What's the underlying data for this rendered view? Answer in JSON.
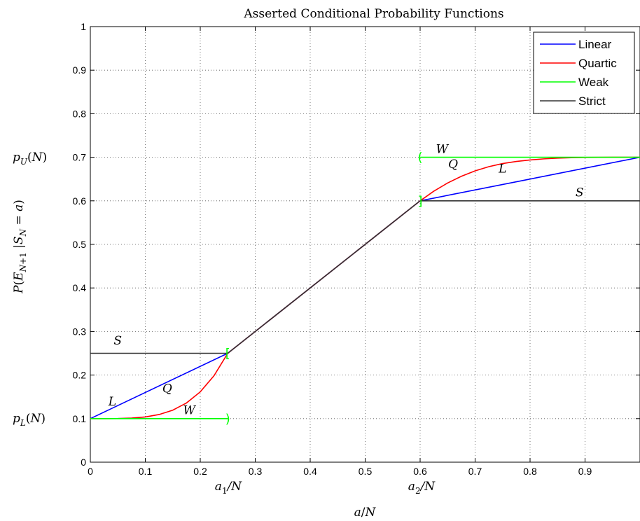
{
  "chart_data": {
    "type": "line",
    "title": "Asserted Conditional Probability Functions",
    "xlabel": "a/N",
    "ylabel": "P(E_{N+1} |S_N = a)",
    "xlim": [
      0,
      1
    ],
    "ylim": [
      0,
      1
    ],
    "x_ticks": [
      "0",
      "0.1",
      "0.2",
      "0.3",
      "0.4",
      "0.5",
      "0.6",
      "0.7",
      "0.8",
      "0.9"
    ],
    "y_ticks": [
      "0",
      "0.1",
      "0.2",
      "0.3",
      "0.4",
      "0.5",
      "0.6",
      "0.7",
      "0.8",
      "0.9",
      "1"
    ],
    "extra_x_labels": [
      {
        "text": "a_1/N",
        "value": 0.25
      },
      {
        "text": "a_2/N",
        "value": 0.6
      }
    ],
    "extra_y_labels": [
      {
        "text": "p_U(N)",
        "value": 0.7
      },
      {
        "text": "p_L(N)",
        "value": 0.1
      }
    ],
    "grid": true,
    "legend_position": "top-right",
    "colors": {
      "linear": "#0000ff",
      "quartic": "#ff0000",
      "weak": "#00ff00",
      "strict": "#333333"
    },
    "series": [
      {
        "name": "Linear",
        "color": "#0000ff",
        "segments": [
          [
            [
              0,
              0.1
            ],
            [
              0.25,
              0.25
            ]
          ],
          [
            [
              0.25,
              0.25
            ],
            [
              0.6,
              0.6
            ]
          ],
          [
            [
              0.6,
              0.6
            ],
            [
              1.0,
              0.7
            ]
          ]
        ]
      },
      {
        "name": "Quartic",
        "color": "#ff0000",
        "segments": [
          [
            [
              0,
              0.1
            ],
            [
              0.025,
              0.10002
            ],
            [
              0.05,
              0.10024
            ],
            [
              0.075,
              0.10122
            ],
            [
              0.1,
              0.10384
            ],
            [
              0.125,
              0.10938
            ],
            [
              0.15,
              0.11944
            ],
            [
              0.175,
              0.13601
            ],
            [
              0.2,
              0.16144
            ],
            [
              0.225,
              0.19842
            ],
            [
              0.25,
              0.25
            ]
          ],
          [
            [
              0.25,
              0.25
            ],
            [
              0.6,
              0.6
            ]
          ],
          [
            [
              0.6,
              0.6
            ],
            [
              0.625,
              0.62229
            ],
            [
              0.65,
              0.64095
            ],
            [
              0.675,
              0.65635
            ],
            [
              0.7,
              0.66875
            ],
            [
              0.725,
              0.67841
            ],
            [
              0.75,
              0.68555
            ],
            [
              0.775,
              0.69046
            ],
            [
              0.8,
              0.69385
            ],
            [
              0.825,
              0.69634
            ],
            [
              0.85,
              0.69802
            ],
            [
              0.875,
              0.69905
            ],
            [
              0.9,
              0.69961
            ],
            [
              0.925,
              0.69988
            ],
            [
              0.95,
              0.69998
            ],
            [
              0.975,
              0.7
            ],
            [
              1.0,
              0.7
            ]
          ]
        ]
      },
      {
        "name": "Weak",
        "color": "#00ff00",
        "segments": [
          [
            [
              0,
              0.1
            ],
            [
              0.25,
              0.1
            ]
          ],
          [
            [
              0.6,
              0.7
            ],
            [
              1.0,
              0.7
            ]
          ]
        ]
      },
      {
        "name": "Strict",
        "color": "#333333",
        "segments": [
          [
            [
              0,
              0.25
            ],
            [
              0.25,
              0.25
            ]
          ],
          [
            [
              0.25,
              0.25
            ],
            [
              0.6,
              0.6
            ]
          ],
          [
            [
              0.6,
              0.6
            ],
            [
              1.0,
              0.6
            ]
          ]
        ]
      }
    ],
    "brackets": [
      {
        "x": 0.25,
        "y": 0.1,
        "glyph": ")"
      },
      {
        "x": 0.25,
        "y": 0.25,
        "glyph": "["
      },
      {
        "x": 0.6,
        "y": 0.6,
        "glyph": "]"
      },
      {
        "x": 0.6,
        "y": 0.7,
        "glyph": "("
      }
    ],
    "annotations": [
      {
        "text": "S",
        "x": 0.05,
        "y": 0.27
      },
      {
        "text": "L",
        "x": 0.04,
        "y": 0.13
      },
      {
        "text": "Q",
        "x": 0.14,
        "y": 0.16
      },
      {
        "text": "W",
        "x": 0.18,
        "y": 0.11
      },
      {
        "text": "W",
        "x": 0.64,
        "y": 0.71
      },
      {
        "text": "Q",
        "x": 0.66,
        "y": 0.675
      },
      {
        "text": "L",
        "x": 0.75,
        "y": 0.665
      },
      {
        "text": "S",
        "x": 0.89,
        "y": 0.61
      }
    ]
  }
}
